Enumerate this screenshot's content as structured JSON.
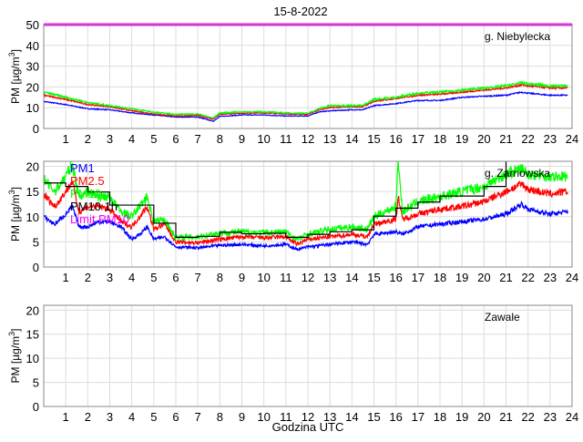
{
  "title": "15-8-2022",
  "xlabel": "Godzina UTC",
  "colors": {
    "PM1": "#0000ff",
    "PM2.5": "#ff0000",
    "PM10": "#00ff00",
    "PM10 1h": "#000000",
    "Limit PM10": "#ff00ff"
  },
  "chart_data": [
    {
      "type": "line",
      "station": "g. Niebylecka",
      "ylabel": "PM [µg/m³]",
      "ylabel_unit_base": "PM [µg/m",
      "ylabel_sup": "3",
      "ylabel_end": "]",
      "xlim": [
        0,
        24
      ],
      "ylim": [
        0,
        50
      ],
      "xticks": [
        1,
        2,
        3,
        4,
        5,
        6,
        7,
        8,
        9,
        10,
        11,
        12,
        13,
        14,
        15,
        16,
        17,
        18,
        19,
        20,
        21,
        22,
        23,
        24
      ],
      "yticks": [
        0,
        10,
        20,
        30,
        40,
        50
      ],
      "grid": true,
      "limit_pm10": 50,
      "series": [
        {
          "key": "PM1",
          "x": [
            0,
            1,
            2,
            3,
            4,
            5,
            6,
            7,
            7.7,
            8,
            9,
            10,
            11,
            12,
            12.5,
            13,
            14,
            14.5,
            15,
            16,
            17,
            18,
            19,
            20,
            21,
            21.7,
            22,
            23,
            23.8
          ],
          "y": [
            13,
            11.5,
            9.5,
            9,
            7.5,
            6.5,
            5.5,
            5.5,
            3.5,
            5.8,
            6.5,
            6.5,
            6,
            6,
            8,
            8.5,
            9,
            9,
            11,
            12,
            13.5,
            13.5,
            15,
            15.5,
            16,
            17.5,
            17,
            16,
            16
          ]
        },
        {
          "key": "PM2.5",
          "x": [
            0,
            1,
            2,
            3,
            4,
            5,
            6,
            7,
            7.7,
            8,
            9,
            10,
            11,
            12,
            12.5,
            13,
            14,
            14.5,
            15,
            16,
            17,
            18,
            19,
            20,
            21,
            21.7,
            22,
            23,
            23.8
          ],
          "y": [
            16,
            14,
            11.5,
            10.5,
            8.5,
            7,
            6,
            6.3,
            4.5,
            6.8,
            7.3,
            7.5,
            7,
            6.8,
            9,
            10,
            10.5,
            10.5,
            13,
            14.5,
            16,
            16.5,
            17.5,
            18.5,
            19.5,
            21,
            20.5,
            19.5,
            19.5
          ]
        },
        {
          "key": "PM10",
          "x": [
            0,
            1,
            2,
            3,
            4,
            5,
            6,
            7,
            7.7,
            8,
            9,
            10,
            11,
            12,
            12.5,
            13,
            14,
            14.5,
            15,
            16,
            17,
            18,
            19,
            20,
            21,
            21.7,
            22,
            23,
            23.8
          ],
          "y": [
            17.5,
            15,
            12.5,
            11,
            9.5,
            7.8,
            6.8,
            7,
            5,
            7.5,
            8,
            8,
            7.5,
            7.3,
            9.5,
            11,
            11,
            11,
            14,
            15,
            17,
            17.5,
            18.5,
            19.5,
            20.5,
            22,
            21.5,
            20.5,
            20.5
          ]
        }
      ]
    },
    {
      "type": "line",
      "station": "g. Zarnowska",
      "ylabel_unit_base": "PM [µg/m",
      "ylabel_sup": "3",
      "ylabel_end": "]",
      "xlim": [
        0,
        24
      ],
      "ylim": [
        0,
        21
      ],
      "xticks": [
        1,
        2,
        3,
        4,
        5,
        6,
        7,
        8,
        9,
        10,
        11,
        12,
        13,
        14,
        15,
        16,
        17,
        18,
        19,
        20,
        21,
        22,
        23,
        24
      ],
      "yticks": [
        0,
        5,
        10,
        15,
        20
      ],
      "grid": true,
      "legend": [
        "PM1",
        "PM2.5",
        "PM10",
        "PM10 1h",
        "Limit PM10"
      ],
      "legend_placement": "top-left",
      "series": [
        {
          "key": "PM1",
          "x": [
            0,
            0.5,
            1,
            1.3,
            1.6,
            2,
            2.5,
            3,
            3.5,
            4,
            4.5,
            4.7,
            5,
            5.5,
            6,
            7,
            8,
            9,
            10,
            11,
            11.5,
            12,
            13,
            14,
            14.7,
            15,
            16,
            16.3,
            17,
            18,
            19,
            20,
            21,
            21.7,
            22,
            23,
            23.8
          ],
          "y": [
            10,
            8.5,
            10.5,
            12,
            8,
            8,
            9,
            9,
            8,
            5.5,
            7,
            8,
            5.5,
            6,
            4,
            3.8,
            4.3,
            4.5,
            4.2,
            4.5,
            3.5,
            4,
            4.5,
            5,
            4.5,
            6.5,
            7,
            6.5,
            8,
            8.5,
            9,
            9.5,
            10.5,
            12.5,
            11.5,
            10.5,
            11
          ]
        },
        {
          "key": "PM2.5",
          "x": [
            0,
            0.5,
            1,
            1.3,
            1.6,
            2,
            2.5,
            3,
            3.5,
            4,
            4.7,
            5,
            5.5,
            6,
            7,
            8,
            9,
            10,
            11,
            11.5,
            12,
            13,
            14,
            14.7,
            15,
            16,
            16.1,
            16.3,
            17,
            18,
            19,
            20,
            21,
            21.7,
            22,
            23,
            23.8
          ],
          "y": [
            14.5,
            12,
            15,
            17,
            11,
            12,
            12,
            11.5,
            9,
            8,
            12,
            7.5,
            8.5,
            5,
            4.8,
            5.5,
            6,
            5.8,
            6,
            4.5,
            5.5,
            6,
            6.5,
            6,
            8.5,
            9.5,
            14,
            9.5,
            10.5,
            11.5,
            12,
            13,
            15,
            16.5,
            15.5,
            14.5,
            15
          ]
        },
        {
          "key": "PM10",
          "x": [
            0,
            0.5,
            1,
            1.3,
            1.6,
            2,
            2.5,
            3,
            3.5,
            4,
            4.7,
            5,
            5.5,
            6,
            7,
            8,
            9,
            10,
            11,
            11.5,
            12,
            13,
            14,
            14.7,
            15,
            16,
            16.1,
            16.3,
            17,
            18,
            19,
            20,
            21,
            21.7,
            22,
            23,
            23.8
          ],
          "y": [
            17.5,
            15,
            18,
            20.5,
            14,
            15,
            14,
            14,
            11,
            10,
            14,
            9,
            9.5,
            5.8,
            6,
            6.8,
            7,
            6.8,
            7,
            5.5,
            6.5,
            7.5,
            8,
            7.5,
            10,
            12,
            21,
            11,
            13,
            14,
            15,
            16,
            18.5,
            19.5,
            18.5,
            18,
            18
          ]
        },
        {
          "key": "PM10 1h",
          "step": true,
          "x": [
            0,
            1,
            2,
            3,
            4,
            5,
            6,
            7,
            8,
            9,
            10,
            11,
            12,
            13,
            14,
            15,
            16,
            17,
            18,
            19,
            20,
            21
          ],
          "y": [
            16.7,
            16,
            14.9,
            12.3,
            12.3,
            8.7,
            5.9,
            6.1,
            6.9,
            6.6,
            6.7,
            5.9,
            6.5,
            7,
            7.4,
            10.1,
            11.7,
            12.9,
            14.1,
            14.1,
            16,
            22
          ]
        }
      ]
    },
    {
      "type": "line",
      "station": "Zawale",
      "ylabel_unit_base": "PM [µg/m",
      "ylabel_sup": "3",
      "ylabel_end": "]",
      "xlim": [
        0,
        24
      ],
      "ylim": [
        0,
        21
      ],
      "xticks": [
        1,
        2,
        3,
        4,
        5,
        6,
        7,
        8,
        9,
        10,
        11,
        12,
        13,
        14,
        15,
        16,
        17,
        18,
        19,
        20,
        21,
        22,
        23,
        24
      ],
      "yticks": [
        0,
        5,
        10,
        15,
        20
      ],
      "grid": true,
      "series": []
    }
  ]
}
